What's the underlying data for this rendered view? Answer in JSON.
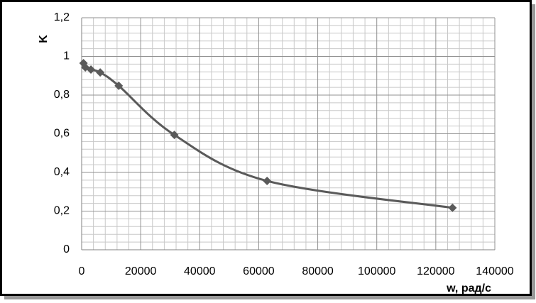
{
  "chart_data": {
    "type": "line",
    "x_label": "w, рад/с",
    "y_label": "K",
    "x": [
      628,
      1257,
      3142,
      6283,
      12566,
      31416,
      62832,
      125664
    ],
    "series": [
      {
        "color": "#5a5a5a",
        "values": [
          0.965,
          0.943,
          0.932,
          0.917,
          0.848,
          0.594,
          0.356,
          0.217
        ]
      }
    ],
    "smooth": true,
    "marker": "diamond",
    "xlim": [
      0,
      140000
    ],
    "xticks": [
      0,
      20000,
      40000,
      60000,
      80000,
      100000,
      120000,
      140000
    ],
    "ylim": [
      0,
      1.2
    ],
    "yticks": [
      0,
      {
        "value": 0.2,
        "label": "0,2"
      },
      {
        "value": 0.4,
        "label": "0,4"
      },
      {
        "value": 0.6,
        "label": "0,6"
      },
      {
        "value": 0.8,
        "label": "0,8"
      },
      1,
      {
        "value": 1.2,
        "label": "1,2"
      }
    ],
    "grid": true,
    "minor_grid": true
  }
}
